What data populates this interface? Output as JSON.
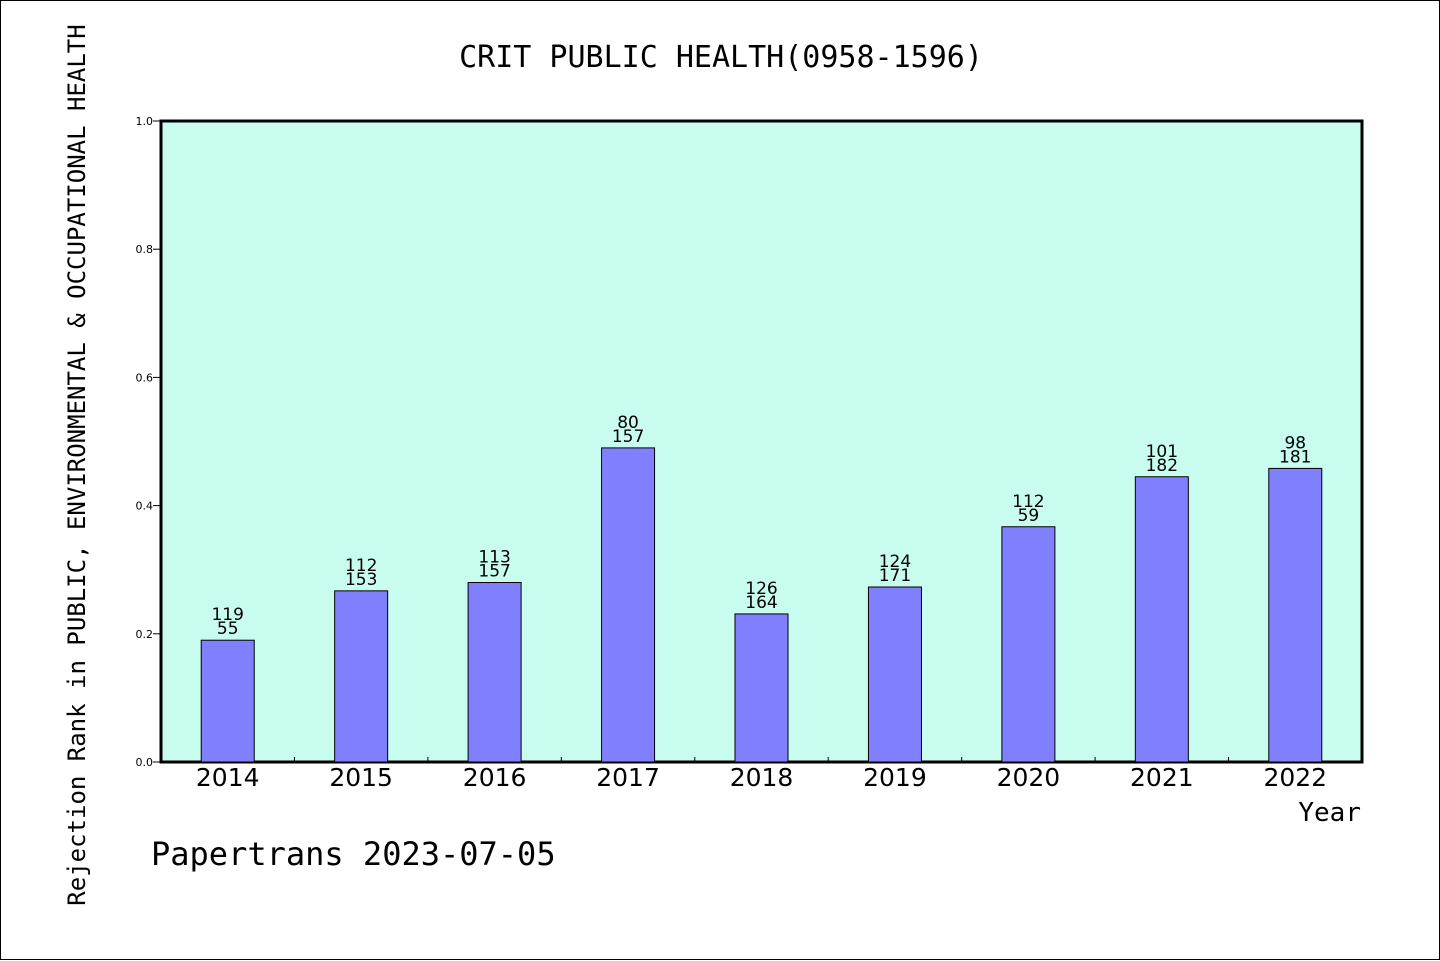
{
  "chart_data": {
    "type": "bar",
    "title": "CRIT PUBLIC HEALTH(0958-1596)",
    "xlabel": "Year",
    "ylabel": "Rejection Rank in PUBLIC, ENVIRONMENTAL & OCCUPATIONAL HEALTH",
    "footer": "Papertrans 2023-07-05",
    "ylim": [
      0.0,
      1.0
    ],
    "yticks": [
      "0.0",
      "0.2",
      "0.4",
      "0.6",
      "0.8",
      "1.0"
    ],
    "categories": [
      "2014",
      "2015",
      "2016",
      "2017",
      "2018",
      "2019",
      "2020",
      "2021",
      "2022"
    ],
    "values": [
      0.19,
      0.267,
      0.28,
      0.49,
      0.231,
      0.273,
      0.367,
      0.445,
      0.458
    ],
    "labels_top": [
      "119",
      "112",
      "113",
      "80",
      "126",
      "124",
      "112",
      "101",
      "98"
    ],
    "labels_bottom": [
      "55",
      "153",
      "157",
      "157",
      "164",
      "171",
      "59",
      "182",
      "181"
    ],
    "grid": false,
    "colors": {
      "plot_background": "#c8fcee",
      "bar_fill": "#8080ff",
      "bar_stroke": "#000000"
    }
  }
}
